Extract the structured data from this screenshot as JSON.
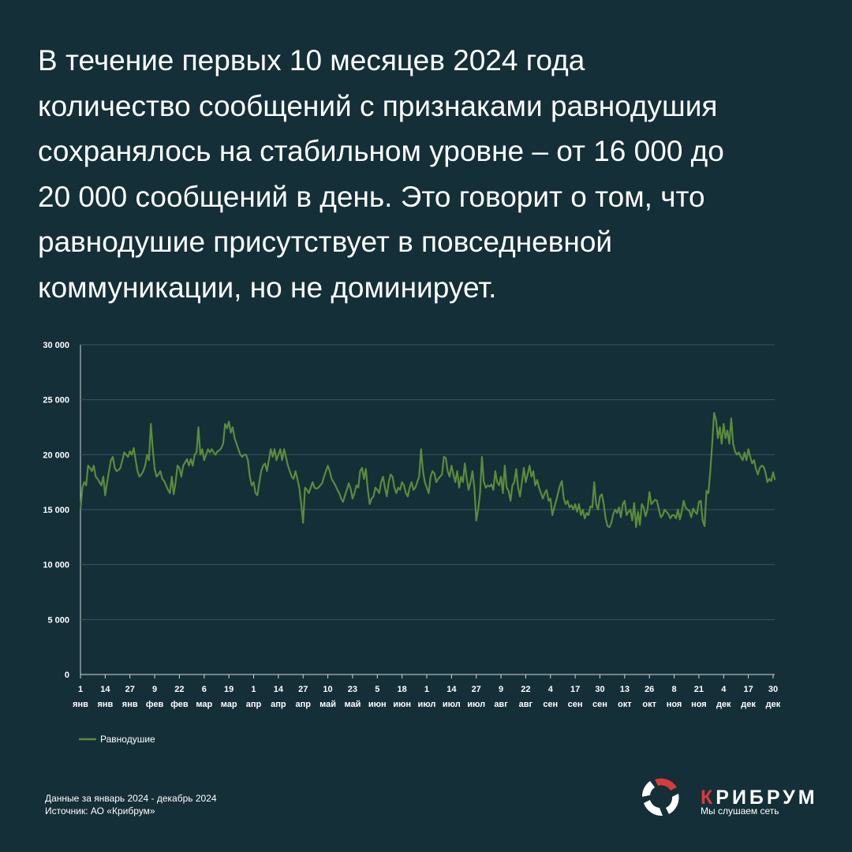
{
  "header": {
    "lines": [
      "В течение первых 10 месяцев 2024 года",
      "количество сообщений с признаками равнодушия",
      "сохранялось на стабильном уровне – от 16 000 до",
      "20 000 сообщений в день. Это говорит о том, что",
      "равнодушие присутствует в повседневной",
      "коммуникации, но не доминирует."
    ]
  },
  "chart_data": {
    "type": "line",
    "categories": [
      [
        "1",
        "янв"
      ],
      null,
      null,
      null,
      null,
      null,
      null,
      null,
      null,
      null,
      null,
      null,
      null,
      [
        "14",
        "янв"
      ],
      null,
      null,
      null,
      null,
      null,
      null,
      null,
      null,
      null,
      null,
      null,
      null,
      [
        "27",
        "янв"
      ],
      null,
      null,
      null,
      null,
      null,
      null,
      null,
      null,
      null,
      null,
      null,
      null,
      [
        "9",
        "фев"
      ],
      null,
      null,
      null,
      null,
      null,
      null,
      null,
      null,
      null,
      null,
      null,
      null,
      [
        "22",
        "фев"
      ],
      null,
      null,
      null,
      null,
      null,
      null,
      null,
      null,
      null,
      null,
      null,
      null,
      [
        "6",
        "мар"
      ],
      null,
      null,
      null,
      null,
      null,
      null,
      null,
      null,
      null,
      null,
      null,
      null,
      [
        "19",
        "мар"
      ],
      null,
      null,
      null,
      null,
      null,
      null,
      null,
      null,
      null,
      null,
      null,
      null,
      [
        "1",
        "апр"
      ],
      null,
      null,
      null,
      null,
      null,
      null,
      null,
      null,
      null,
      null,
      null,
      null,
      [
        "14",
        "апр"
      ],
      null,
      null,
      null,
      null,
      null,
      null,
      null,
      null,
      null,
      null,
      null,
      null,
      [
        "27",
        "апр"
      ],
      null,
      null,
      null,
      null,
      null,
      null,
      null,
      null,
      null,
      null,
      null,
      null,
      [
        "10",
        "май"
      ],
      null,
      null,
      null,
      null,
      null,
      null,
      null,
      null,
      null,
      null,
      null,
      null,
      [
        "23",
        "май"
      ],
      null,
      null,
      null,
      null,
      null,
      null,
      null,
      null,
      null,
      null,
      null,
      null,
      [
        "5",
        "июн"
      ],
      null,
      null,
      null,
      null,
      null,
      null,
      null,
      null,
      null,
      null,
      null,
      null,
      [
        "18",
        "июн"
      ],
      null,
      null,
      null,
      null,
      null,
      null,
      null,
      null,
      null,
      null,
      null,
      null,
      [
        "1",
        "июл"
      ],
      null,
      null,
      null,
      null,
      null,
      null,
      null,
      null,
      null,
      null,
      null,
      null,
      [
        "14",
        "июл"
      ],
      null,
      null,
      null,
      null,
      null,
      null,
      null,
      null,
      null,
      null,
      null,
      null,
      [
        "27",
        "июл"
      ],
      null,
      null,
      null,
      null,
      null,
      null,
      null,
      null,
      null,
      null,
      null,
      null,
      [
        "9",
        "авг"
      ],
      null,
      null,
      null,
      null,
      null,
      null,
      null,
      null,
      null,
      null,
      null,
      null,
      [
        "22",
        "авг"
      ],
      null,
      null,
      null,
      null,
      null,
      null,
      null,
      null,
      null,
      null,
      null,
      null,
      [
        "4",
        "сен"
      ],
      null,
      null,
      null,
      null,
      null,
      null,
      null,
      null,
      null,
      null,
      null,
      null,
      [
        "17",
        "сен"
      ],
      null,
      null,
      null,
      null,
      null,
      null,
      null,
      null,
      null,
      null,
      null,
      null,
      [
        "30",
        "сен"
      ],
      null,
      null,
      null,
      null,
      null,
      null,
      null,
      null,
      null,
      null,
      null,
      null,
      [
        "13",
        "окт"
      ],
      null,
      null,
      null,
      null,
      null,
      null,
      null,
      null,
      null,
      null,
      null,
      null,
      [
        "26",
        "окт"
      ],
      null,
      null,
      null,
      null,
      null,
      null,
      null,
      null,
      null,
      null,
      null,
      null,
      [
        "8",
        "ноя"
      ],
      null,
      null,
      null,
      null,
      null,
      null,
      null,
      null,
      null,
      null,
      null,
      null,
      [
        "21",
        "ноя"
      ],
      null,
      null,
      null,
      null,
      null,
      null,
      null,
      null,
      null,
      null,
      null,
      null,
      [
        "4",
        "дек"
      ],
      null,
      null,
      null,
      null,
      null,
      null,
      null,
      null,
      null,
      null,
      null,
      null,
      [
        "17",
        "дек"
      ],
      null,
      null,
      null,
      null,
      null,
      null,
      null,
      null,
      null,
      null,
      null,
      null,
      [
        "30",
        "дек"
      ],
      null
    ],
    "series": [
      {
        "name": "Равнодушие",
        "color": "#5b8c3a",
        "values": [
          15000,
          17000,
          17500,
          17200,
          19000,
          18800,
          18500,
          19000,
          18000,
          17800,
          17500,
          17200,
          18000,
          16300,
          17500,
          18500,
          19500,
          19800,
          18800,
          18500,
          18600,
          18800,
          19500,
          20200,
          20000,
          19800,
          20300,
          20000,
          20600,
          19500,
          18500,
          18000,
          18200,
          18500,
          19000,
          20000,
          19500,
          22800,
          20500,
          18700,
          18000,
          18200,
          18500,
          17800,
          17600,
          17200,
          16800,
          16500,
          18000,
          16400,
          17500,
          19000,
          18800,
          18000,
          19000,
          19300,
          19600,
          19000,
          19600,
          19000,
          20000,
          20200,
          22500,
          20000,
          20500,
          19500,
          20000,
          20500,
          20200,
          20500,
          20200,
          20000,
          20300,
          20400,
          20600,
          21000,
          22800,
          22400,
          23000,
          22000,
          22500,
          21500,
          21000,
          20500,
          20000,
          19800,
          20000,
          20000,
          19500,
          18000,
          17200,
          17500,
          16500,
          16300,
          17500,
          18500,
          19000,
          19200,
          18500,
          19500,
          20500,
          19800,
          20500,
          19500,
          20000,
          20500,
          19500,
          20500,
          19800,
          19000,
          18500,
          18000,
          17800,
          18500,
          17800,
          17000,
          15500,
          13800,
          17000,
          16800,
          16500,
          17000,
          17500,
          17000,
          16900,
          17000,
          17200,
          17400,
          18000,
          18500,
          19000,
          18500,
          17800,
          17500,
          17200,
          16800,
          16500,
          16000,
          15700,
          16300,
          16800,
          17400,
          16900,
          16000,
          16500,
          17200,
          17000,
          18500,
          18800,
          17800,
          18700,
          16800,
          15500,
          16000,
          16200,
          17000,
          16800,
          16500,
          17500,
          18000,
          17000,
          16200,
          17500,
          18200,
          18000,
          17000,
          16500,
          17000,
          16800,
          17500,
          17200,
          16500,
          16200,
          17000,
          17500,
          16800,
          17000,
          17500,
          18000,
          20500,
          18500,
          17500,
          17000,
          16500,
          18000,
          18500,
          18300,
          17500,
          17800,
          18000,
          18200,
          19800,
          19700,
          18500,
          18000,
          19000,
          18200,
          17500,
          18500,
          17000,
          18000,
          17500,
          19200,
          17800,
          16800,
          17500,
          18500,
          17000,
          14000,
          15000,
          16500,
          19800,
          17500,
          17000,
          17200,
          17100,
          17300,
          16800,
          18500,
          17500,
          17200,
          18000,
          16500,
          19000,
          17000,
          16700,
          15800,
          17200,
          17500,
          18700,
          17000,
          16200,
          17500,
          18800,
          17500,
          18200,
          19000,
          18000,
          18500,
          17200,
          17700,
          17000,
          16500,
          16000,
          16500,
          16800,
          15800,
          16000,
          14500,
          15200,
          15800,
          16500,
          17200,
          17600,
          16000,
          15500,
          15800,
          15200,
          15400,
          15000,
          15500,
          14800,
          15500,
          14500,
          15000,
          14200,
          14700,
          14500,
          15300,
          15200,
          17500,
          15500,
          15000,
          16200,
          16400,
          15500,
          14200,
          13500,
          13400,
          13800,
          14600,
          15000,
          14700,
          15200,
          14300,
          15500,
          15800,
          14500,
          14800,
          15000,
          14000,
          15600,
          13400,
          14800,
          13600,
          15500,
          15200,
          14400,
          15000,
          16600,
          15500,
          15700,
          15900,
          15800,
          15000,
          14300,
          14500,
          15000,
          14800,
          14600,
          14200,
          14500,
          14500,
          14200,
          15000,
          14100,
          14800,
          15800,
          15200,
          15000,
          14900,
          14300,
          15100,
          14800,
          14600,
          15700,
          15800,
          14000,
          13500,
          16700,
          16500,
          18500,
          21000,
          23800,
          23200,
          21500,
          22500,
          21000,
          22800,
          21500,
          22200,
          21000,
          23300,
          21000,
          20300,
          20000,
          20200,
          19800,
          19500,
          20200,
          19500,
          20500,
          19800,
          19200,
          19500,
          18700,
          18200,
          18800,
          19000,
          18900,
          18400,
          17500,
          17800,
          17600,
          18400,
          17700
        ]
      }
    ],
    "ylim": [
      0,
      30000
    ],
    "yticks": [
      0,
      {
        "value": 5000,
        "label": "5 000"
      },
      {
        "value": 10000,
        "label": "10 000"
      },
      {
        "value": 15000,
        "label": "15 000"
      },
      {
        "value": 20000,
        "label": "20 000"
      },
      {
        "value": 25000,
        "label": "25 000"
      },
      {
        "value": 30000,
        "label": "30 000"
      }
    ],
    "grid": true,
    "legend": "bottom-left"
  },
  "footer": {
    "period": "Данные за январь 2024  - декабрь 2024",
    "source": "Источник: АО «Крибрум»"
  },
  "brand": {
    "name": [
      "К",
      "РИБРУМ"
    ],
    "tagline": "Мы слушаем сеть"
  }
}
